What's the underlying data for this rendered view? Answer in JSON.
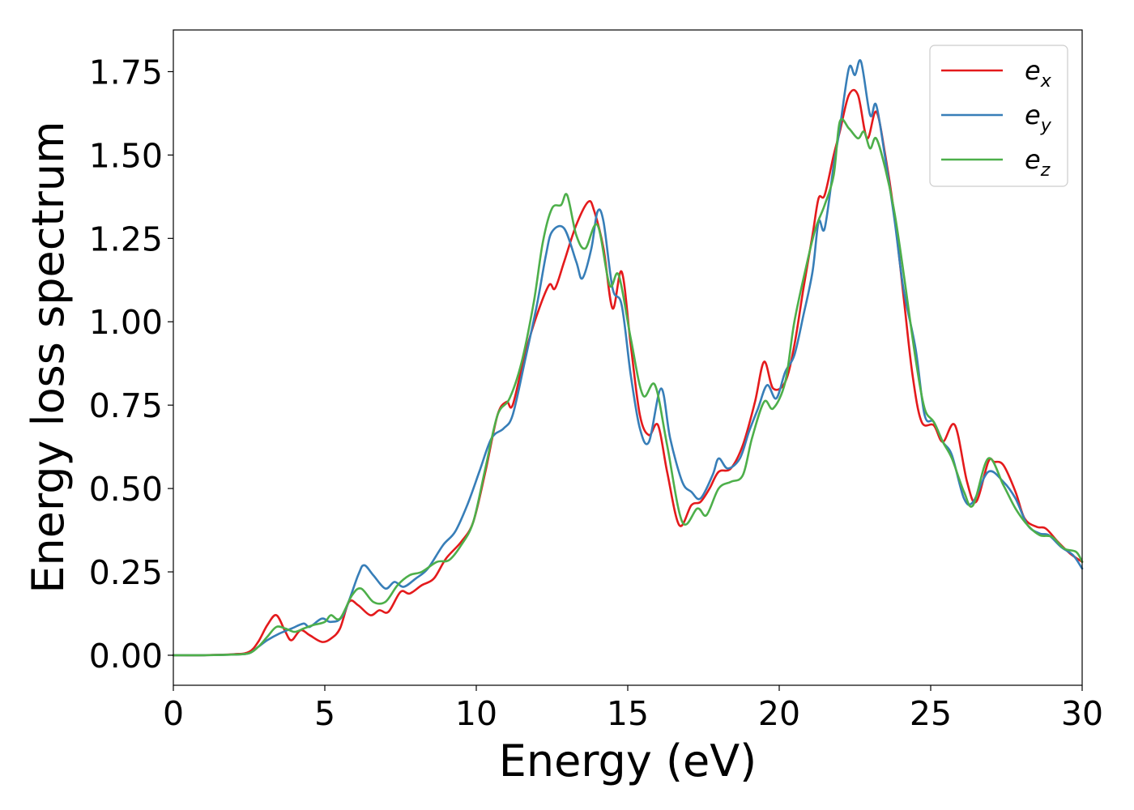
{
  "chart_data": {
    "type": "line",
    "title": "",
    "xlabel": "Energy (eV)",
    "ylabel": "Energy loss spectrum",
    "xlim": [
      0,
      30
    ],
    "ylim": [
      -0.09,
      1.875
    ],
    "x_ticks": [
      0,
      5,
      10,
      15,
      20,
      25,
      30
    ],
    "x_tick_labels": [
      "0",
      "5",
      "10",
      "15",
      "20",
      "25",
      "30"
    ],
    "y_ticks": [
      0.0,
      0.25,
      0.5,
      0.75,
      1.0,
      1.25,
      1.5,
      1.75
    ],
    "y_tick_labels": [
      "0.00",
      "0.25",
      "0.50",
      "0.75",
      "1.00",
      "1.25",
      "1.50",
      "1.75"
    ],
    "grid": false,
    "legend_position": "top-right",
    "series": [
      {
        "name": "e_x",
        "legend_base": "e",
        "legend_sub": "x",
        "color": "#e41a1c",
        "points": [
          [
            0,
            0
          ],
          [
            1,
            0
          ],
          [
            2,
            0.003
          ],
          [
            2.5,
            0.01
          ],
          [
            2.8,
            0.04
          ],
          [
            3.1,
            0.09
          ],
          [
            3.4,
            0.12
          ],
          [
            3.7,
            0.07
          ],
          [
            3.9,
            0.045
          ],
          [
            4.2,
            0.075
          ],
          [
            4.5,
            0.06
          ],
          [
            4.9,
            0.04
          ],
          [
            5.2,
            0.05
          ],
          [
            5.5,
            0.08
          ],
          [
            5.8,
            0.16
          ],
          [
            6.1,
            0.15
          ],
          [
            6.5,
            0.12
          ],
          [
            6.8,
            0.135
          ],
          [
            7.1,
            0.13
          ],
          [
            7.5,
            0.19
          ],
          [
            7.8,
            0.185
          ],
          [
            8.2,
            0.21
          ],
          [
            8.6,
            0.23
          ],
          [
            9,
            0.29
          ],
          [
            9.5,
            0.34
          ],
          [
            9.9,
            0.4
          ],
          [
            10.3,
            0.55
          ],
          [
            10.7,
            0.72
          ],
          [
            11,
            0.76
          ],
          [
            11.2,
            0.75
          ],
          [
            11.6,
            0.9
          ],
          [
            12,
            1.02
          ],
          [
            12.4,
            1.11
          ],
          [
            12.6,
            1.1
          ],
          [
            12.9,
            1.18
          ],
          [
            13.3,
            1.29
          ],
          [
            13.7,
            1.36
          ],
          [
            13.9,
            1.33
          ],
          [
            14.2,
            1.22
          ],
          [
            14.5,
            1.04
          ],
          [
            14.8,
            1.15
          ],
          [
            15.1,
            0.93
          ],
          [
            15.4,
            0.72
          ],
          [
            15.7,
            0.66
          ],
          [
            16,
            0.69
          ],
          [
            16.3,
            0.55
          ],
          [
            16.7,
            0.39
          ],
          [
            17.1,
            0.45
          ],
          [
            17.4,
            0.46
          ],
          [
            17.7,
            0.5
          ],
          [
            18,
            0.55
          ],
          [
            18.4,
            0.56
          ],
          [
            18.8,
            0.63
          ],
          [
            19.2,
            0.76
          ],
          [
            19.5,
            0.88
          ],
          [
            19.8,
            0.8
          ],
          [
            20.2,
            0.82
          ],
          [
            20.5,
            0.93
          ],
          [
            20.8,
            1.1
          ],
          [
            21.1,
            1.26
          ],
          [
            21.3,
            1.37
          ],
          [
            21.5,
            1.38
          ],
          [
            21.8,
            1.5
          ],
          [
            22,
            1.57
          ],
          [
            22.3,
            1.68
          ],
          [
            22.6,
            1.68
          ],
          [
            22.9,
            1.55
          ],
          [
            23.2,
            1.63
          ],
          [
            23.5,
            1.5
          ],
          [
            23.8,
            1.32
          ],
          [
            24.1,
            1.08
          ],
          [
            24.4,
            0.84
          ],
          [
            24.7,
            0.7
          ],
          [
            25.1,
            0.69
          ],
          [
            25.4,
            0.64
          ],
          [
            25.8,
            0.69
          ],
          [
            26.2,
            0.52
          ],
          [
            26.5,
            0.46
          ],
          [
            26.9,
            0.58
          ],
          [
            27.1,
            0.58
          ],
          [
            27.4,
            0.57
          ],
          [
            27.8,
            0.49
          ],
          [
            28.1,
            0.41
          ],
          [
            28.5,
            0.385
          ],
          [
            28.8,
            0.38
          ],
          [
            29.2,
            0.34
          ],
          [
            29.6,
            0.305
          ],
          [
            30,
            0.28
          ]
        ]
      },
      {
        "name": "e_y",
        "legend_base": "e",
        "legend_sub": "y",
        "color": "#377eb8",
        "points": [
          [
            0,
            0
          ],
          [
            1,
            0
          ],
          [
            2,
            0.002
          ],
          [
            2.5,
            0.006
          ],
          [
            2.8,
            0.025
          ],
          [
            3.1,
            0.045
          ],
          [
            3.5,
            0.065
          ],
          [
            3.9,
            0.08
          ],
          [
            4.3,
            0.095
          ],
          [
            4.5,
            0.085
          ],
          [
            4.9,
            0.11
          ],
          [
            5.2,
            0.1
          ],
          [
            5.6,
            0.12
          ],
          [
            6.1,
            0.24
          ],
          [
            6.3,
            0.27
          ],
          [
            6.6,
            0.24
          ],
          [
            7,
            0.2
          ],
          [
            7.3,
            0.22
          ],
          [
            7.6,
            0.205
          ],
          [
            8,
            0.23
          ],
          [
            8.4,
            0.26
          ],
          [
            8.9,
            0.33
          ],
          [
            9.3,
            0.37
          ],
          [
            9.7,
            0.45
          ],
          [
            10.1,
            0.55
          ],
          [
            10.5,
            0.65
          ],
          [
            10.9,
            0.68
          ],
          [
            11.2,
            0.72
          ],
          [
            11.6,
            0.88
          ],
          [
            12,
            1.05
          ],
          [
            12.3,
            1.2
          ],
          [
            12.5,
            1.27
          ],
          [
            12.9,
            1.28
          ],
          [
            13.3,
            1.18
          ],
          [
            13.5,
            1.13
          ],
          [
            13.8,
            1.22
          ],
          [
            14,
            1.33
          ],
          [
            14.2,
            1.3
          ],
          [
            14.5,
            1.1
          ],
          [
            14.8,
            1.05
          ],
          [
            15.1,
            0.84
          ],
          [
            15.4,
            0.68
          ],
          [
            15.7,
            0.64
          ],
          [
            16.1,
            0.8
          ],
          [
            16.4,
            0.65
          ],
          [
            16.8,
            0.52
          ],
          [
            17.1,
            0.49
          ],
          [
            17.4,
            0.47
          ],
          [
            17.8,
            0.54
          ],
          [
            18,
            0.59
          ],
          [
            18.3,
            0.56
          ],
          [
            18.7,
            0.59
          ],
          [
            19,
            0.67
          ],
          [
            19.3,
            0.74
          ],
          [
            19.6,
            0.81
          ],
          [
            19.9,
            0.77
          ],
          [
            20.2,
            0.85
          ],
          [
            20.5,
            0.9
          ],
          [
            20.8,
            1.02
          ],
          [
            21.1,
            1.15
          ],
          [
            21.3,
            1.3
          ],
          [
            21.5,
            1.28
          ],
          [
            21.8,
            1.47
          ],
          [
            22,
            1.58
          ],
          [
            22.3,
            1.76
          ],
          [
            22.5,
            1.74
          ],
          [
            22.7,
            1.78
          ],
          [
            23,
            1.62
          ],
          [
            23.2,
            1.65
          ],
          [
            23.5,
            1.49
          ],
          [
            23.8,
            1.31
          ],
          [
            24.1,
            1.1
          ],
          [
            24.5,
            0.92
          ],
          [
            24.8,
            0.72
          ],
          [
            25.1,
            0.7
          ],
          [
            25.4,
            0.64
          ],
          [
            25.7,
            0.6
          ],
          [
            26.1,
            0.47
          ],
          [
            26.4,
            0.46
          ],
          [
            26.9,
            0.55
          ],
          [
            27.4,
            0.52
          ],
          [
            27.8,
            0.47
          ],
          [
            28.2,
            0.39
          ],
          [
            28.6,
            0.365
          ],
          [
            28.9,
            0.36
          ],
          [
            29.3,
            0.325
          ],
          [
            29.7,
            0.3
          ],
          [
            30,
            0.26
          ]
        ]
      },
      {
        "name": "e_z",
        "legend_base": "e",
        "legend_sub": "z",
        "color": "#4daf4a",
        "points": [
          [
            0,
            0
          ],
          [
            1,
            0
          ],
          [
            2,
            0.002
          ],
          [
            2.5,
            0.006
          ],
          [
            2.8,
            0.025
          ],
          [
            3.1,
            0.055
          ],
          [
            3.4,
            0.085
          ],
          [
            3.7,
            0.08
          ],
          [
            4,
            0.07
          ],
          [
            4.3,
            0.08
          ],
          [
            4.6,
            0.09
          ],
          [
            5,
            0.1
          ],
          [
            5.2,
            0.12
          ],
          [
            5.5,
            0.11
          ],
          [
            5.9,
            0.18
          ],
          [
            6.2,
            0.2
          ],
          [
            6.6,
            0.16
          ],
          [
            7,
            0.16
          ],
          [
            7.4,
            0.21
          ],
          [
            7.8,
            0.24
          ],
          [
            8.2,
            0.25
          ],
          [
            8.7,
            0.28
          ],
          [
            9.1,
            0.285
          ],
          [
            9.5,
            0.33
          ],
          [
            9.9,
            0.4
          ],
          [
            10.3,
            0.56
          ],
          [
            10.7,
            0.72
          ],
          [
            11.1,
            0.77
          ],
          [
            11.5,
            0.88
          ],
          [
            11.9,
            1.06
          ],
          [
            12.2,
            1.24
          ],
          [
            12.5,
            1.34
          ],
          [
            12.8,
            1.35
          ],
          [
            13,
            1.38
          ],
          [
            13.3,
            1.26
          ],
          [
            13.6,
            1.22
          ],
          [
            14,
            1.29
          ],
          [
            14.4,
            1.11
          ],
          [
            14.7,
            1.14
          ],
          [
            15.1,
            0.95
          ],
          [
            15.5,
            0.78
          ],
          [
            15.9,
            0.81
          ],
          [
            16.3,
            0.63
          ],
          [
            16.8,
            0.4
          ],
          [
            17.3,
            0.44
          ],
          [
            17.6,
            0.42
          ],
          [
            18,
            0.5
          ],
          [
            18.4,
            0.52
          ],
          [
            18.8,
            0.54
          ],
          [
            19.1,
            0.65
          ],
          [
            19.5,
            0.76
          ],
          [
            19.8,
            0.74
          ],
          [
            20.2,
            0.82
          ],
          [
            20.5,
            1.0
          ],
          [
            20.9,
            1.17
          ],
          [
            21.2,
            1.28
          ],
          [
            21.5,
            1.35
          ],
          [
            21.8,
            1.44
          ],
          [
            22,
            1.6
          ],
          [
            22.3,
            1.58
          ],
          [
            22.6,
            1.55
          ],
          [
            22.8,
            1.57
          ],
          [
            23,
            1.52
          ],
          [
            23.2,
            1.55
          ],
          [
            23.5,
            1.46
          ],
          [
            23.8,
            1.33
          ],
          [
            24.1,
            1.15
          ],
          [
            24.5,
            0.89
          ],
          [
            24.8,
            0.74
          ],
          [
            25.1,
            0.7
          ],
          [
            25.4,
            0.64
          ],
          [
            25.7,
            0.59
          ],
          [
            26.1,
            0.49
          ],
          [
            26.4,
            0.45
          ],
          [
            26.9,
            0.59
          ],
          [
            27.4,
            0.51
          ],
          [
            27.8,
            0.44
          ],
          [
            28.2,
            0.39
          ],
          [
            28.6,
            0.36
          ],
          [
            29,
            0.355
          ],
          [
            29.4,
            0.32
          ],
          [
            29.8,
            0.31
          ],
          [
            30,
            0.28
          ]
        ]
      }
    ]
  }
}
